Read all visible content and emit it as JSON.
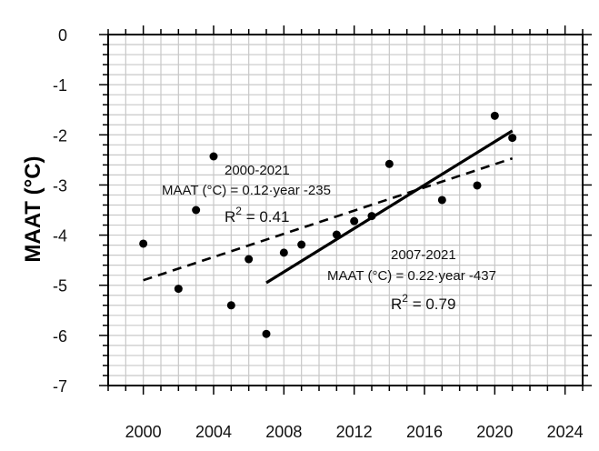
{
  "chart_data": {
    "type": "scatter",
    "title": "",
    "xlabel": "",
    "ylabel": "MAAT (°C)",
    "xlim": [
      1998,
      2025
    ],
    "ylim": [
      -7,
      0
    ],
    "xticks": [
      2000,
      2004,
      2008,
      2012,
      2016,
      2020,
      2024
    ],
    "yticks": [
      0,
      -1,
      -2,
      -3,
      -4,
      -5,
      -6,
      -7
    ],
    "grid": true,
    "points": [
      {
        "x": 2000,
        "y": -4.17
      },
      {
        "x": 2002,
        "y": -5.07
      },
      {
        "x": 2003,
        "y": -3.5
      },
      {
        "x": 2004,
        "y": -2.43
      },
      {
        "x": 2005,
        "y": -5.4
      },
      {
        "x": 2006,
        "y": -4.48
      },
      {
        "x": 2007,
        "y": -5.97
      },
      {
        "x": 2008,
        "y": -4.35
      },
      {
        "x": 2009,
        "y": -4.19
      },
      {
        "x": 2011,
        "y": -3.99
      },
      {
        "x": 2012,
        "y": -3.72
      },
      {
        "x": 2013,
        "y": -3.62
      },
      {
        "x": 2014,
        "y": -2.58
      },
      {
        "x": 2017,
        "y": -3.3
      },
      {
        "x": 2019,
        "y": -3.01
      },
      {
        "x": 2020,
        "y": -1.62
      },
      {
        "x": 2021,
        "y": -2.06
      }
    ],
    "trendlines": [
      {
        "range": [
          2000,
          2021
        ],
        "slope": 0.12,
        "intercept": -235,
        "r2": 0.41,
        "style": "dashed",
        "label_period": "2000-2021",
        "label_eq": "MAAT (°C) = 0.12·year -235",
        "label_r2_prefix": "R",
        "label_r2_sup": "2",
        "label_r2_value": " = 0.41",
        "y_start": -4.9,
        "y_end": -2.47
      },
      {
        "range": [
          2007,
          2021
        ],
        "slope": 0.22,
        "intercept": -437,
        "r2": 0.79,
        "style": "solid",
        "label_period": "2007-2021",
        "label_eq": "MAAT (°C) = 0.22·year -437",
        "label_r2_prefix": "R",
        "label_r2_sup": "2",
        "label_r2_value": " = 0.79",
        "y_start": -4.95,
        "y_end": -1.92
      }
    ]
  }
}
